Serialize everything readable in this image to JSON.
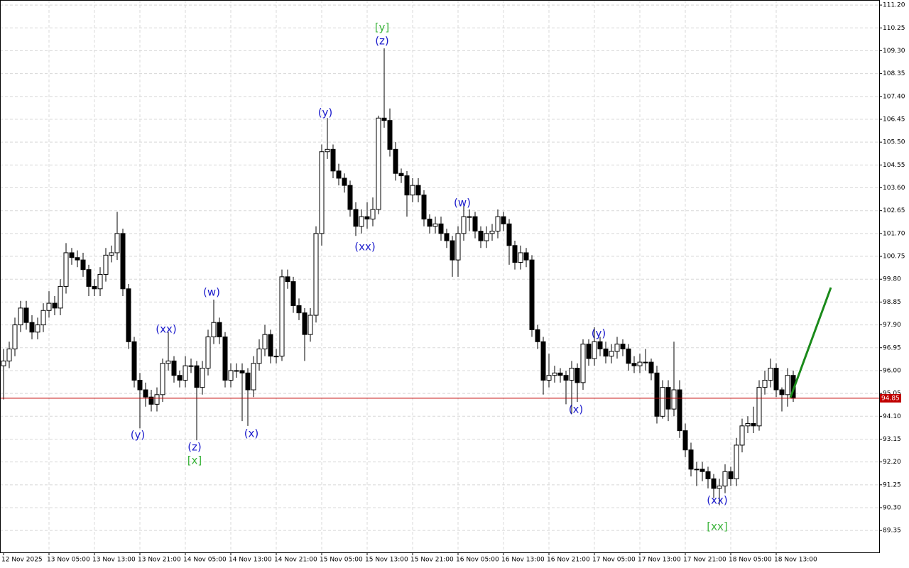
{
  "chart_data": {
    "type": "candlestick",
    "categories": [
      "12 Nov 2025",
      null,
      null,
      null,
      null,
      null,
      null,
      null,
      "13 Nov 05:00",
      null,
      null,
      null,
      null,
      null,
      null,
      null,
      "13 Nov 13:00",
      null,
      null,
      null,
      null,
      null,
      null,
      null,
      "13 Nov 21:00",
      null,
      null,
      null,
      null,
      null,
      null,
      null,
      "14 Nov 05:00",
      null,
      null,
      null,
      null,
      null,
      null,
      null,
      "14 Nov 13:00",
      null,
      null,
      null,
      null,
      null,
      null,
      null,
      "14 Nov 21:00",
      null,
      null,
      null,
      null,
      null,
      null,
      null,
      "15 Nov 05:00",
      null,
      null,
      null,
      null,
      null,
      null,
      null,
      "15 Nov 13:00",
      null,
      null,
      null,
      null,
      null,
      null,
      null,
      "15 Nov 21:00",
      null,
      null,
      null,
      null,
      null,
      null,
      null,
      "16 Nov 05:00",
      null,
      null,
      null,
      null,
      null,
      null,
      null,
      "16 Nov 13:00",
      null,
      null,
      null,
      null,
      null,
      null,
      null,
      "16 Nov 21:00",
      null,
      null,
      null,
      null,
      null,
      null,
      null,
      "17 Nov 05:00",
      null,
      null,
      null,
      null,
      null,
      null,
      null,
      "17 Nov 13:00",
      null,
      null,
      null,
      null,
      null,
      null,
      null,
      "17 Nov 21:00",
      null,
      null,
      null,
      null,
      null,
      null,
      null,
      "18 Nov 05:00",
      null,
      null,
      null,
      null,
      null,
      null,
      null,
      "18 Nov 13:00",
      null,
      null,
      null
    ],
    "open": [
      96.2,
      96.4,
      96.9,
      97.9,
      98.6,
      98.0,
      97.6,
      97.9,
      98.5,
      98.8,
      98.6,
      99.5,
      100.9,
      100.7,
      100.6,
      100.2,
      99.5,
      99.4,
      100.0,
      100.8,
      100.9,
      101.7,
      99.4,
      97.2,
      95.6,
      95.2,
      94.9,
      94.6,
      95.0,
      96.3,
      96.4,
      95.8,
      95.6,
      96.2,
      96.2,
      95.3,
      96.1,
      97.4,
      98.0,
      97.4,
      95.6,
      96.0,
      96.0,
      95.9,
      95.2,
      96.3,
      96.9,
      97.5,
      96.6,
      96.6,
      99.9,
      99.7,
      98.7,
      98.4,
      97.5,
      98.3,
      101.7,
      105.1,
      105.2,
      104.3,
      104.0,
      103.7,
      102.7,
      102.0,
      102.4,
      102.3,
      102.7,
      106.5,
      106.4,
      105.2,
      104.2,
      104.1,
      103.3,
      103.7,
      103.3,
      102.3,
      102.0,
      102.1,
      101.7,
      101.4,
      100.6,
      101.7,
      102.4,
      102.4,
      101.8,
      101.4,
      101.7,
      101.8,
      102.4,
      102.1,
      101.2,
      100.5,
      100.9,
      100.6,
      97.7,
      97.2,
      95.6,
      95.8,
      95.9,
      95.8,
      95.6,
      96.1,
      95.5,
      97.1,
      96.5,
      97.2,
      96.9,
      96.6,
      96.8,
      97.1,
      96.9,
      96.3,
      96.2,
      96.35,
      96.35,
      95.9,
      94.1,
      95.3,
      94.4,
      95.2,
      93.5,
      92.7,
      91.9,
      91.9,
      91.8,
      91.5,
      91.1,
      91.2,
      91.8,
      91.5,
      92.9,
      93.7,
      93.8,
      93.7,
      95.3,
      95.6,
      96.1,
      95.2,
      95.0,
      95.8
    ],
    "high": [
      96.9,
      97.2,
      98.2,
      98.9,
      98.9,
      98.3,
      98.2,
      98.8,
      99.3,
      99.1,
      99.8,
      101.3,
      101.1,
      101.0,
      100.9,
      100.4,
      99.8,
      100.3,
      101.1,
      101.2,
      102.6,
      101.9,
      99.6,
      97.4,
      95.9,
      95.5,
      95.2,
      95.3,
      96.5,
      97.6,
      96.6,
      96.0,
      96.6,
      96.5,
      96.4,
      96.4,
      97.7,
      98.95,
      98.2,
      97.6,
      96.3,
      96.3,
      96.3,
      96.1,
      96.6,
      97.3,
      97.9,
      97.7,
      96.9,
      100.2,
      100.2,
      99.9,
      99.0,
      98.6,
      98.6,
      102.0,
      105.4,
      106.5,
      105.4,
      104.6,
      104.2,
      103.9,
      103.0,
      102.7,
      103.0,
      103.2,
      106.6,
      109.4,
      106.9,
      105.5,
      104.4,
      104.3,
      104.0,
      104.0,
      103.5,
      102.5,
      102.4,
      102.4,
      101.9,
      101.6,
      102.0,
      102.9,
      102.7,
      102.6,
      102.0,
      102.0,
      102.1,
      102.7,
      102.6,
      102.3,
      101.4,
      101.2,
      101.1,
      100.8,
      97.9,
      97.4,
      96.7,
      96.2,
      96.1,
      96.0,
      96.4,
      96.3,
      97.3,
      97.3,
      97.8,
      97.4,
      97.2,
      97.1,
      97.4,
      97.3,
      97.1,
      96.6,
      96.7,
      96.9,
      96.5,
      96.2,
      95.6,
      95.6,
      97.2,
      95.6,
      93.8,
      93.0,
      92.2,
      92.2,
      92.0,
      91.7,
      91.5,
      92.1,
      92.0,
      93.2,
      94.0,
      94.1,
      94.5,
      95.6,
      96.0,
      96.5,
      96.3,
      95.3,
      96.1,
      96.0
    ],
    "low": [
      94.8,
      96.1,
      96.6,
      97.6,
      97.7,
      97.3,
      97.3,
      97.6,
      98.2,
      98.3,
      98.3,
      99.2,
      100.4,
      100.3,
      99.9,
      99.1,
      99.1,
      99.1,
      99.7,
      100.5,
      100.6,
      99.1,
      96.9,
      95.3,
      93.6,
      94.5,
      94.3,
      94.3,
      94.7,
      96.0,
      95.5,
      95.3,
      95.3,
      95.9,
      93.1,
      95.0,
      95.8,
      97.1,
      97.1,
      95.3,
      95.3,
      95.7,
      93.9,
      93.7,
      94.9,
      96.0,
      96.6,
      96.3,
      96.3,
      96.4,
      99.4,
      98.4,
      98.1,
      96.4,
      97.2,
      98.0,
      101.2,
      104.8,
      104.0,
      103.7,
      103.4,
      102.4,
      101.6,
      101.7,
      101.9,
      102.0,
      102.5,
      106.1,
      104.9,
      103.9,
      103.8,
      102.4,
      103.0,
      103.0,
      102.0,
      101.7,
      101.7,
      101.4,
      101.1,
      99.9,
      99.9,
      101.4,
      101.8,
      101.5,
      101.1,
      101.1,
      101.4,
      101.5,
      101.8,
      100.4,
      100.2,
      100.2,
      100.3,
      97.4,
      96.9,
      95.0,
      95.3,
      95.5,
      95.5,
      94.6,
      94.2,
      94.7,
      95.2,
      96.2,
      96.2,
      96.6,
      96.3,
      96.3,
      96.5,
      96.6,
      96.0,
      95.9,
      95.9,
      96.0,
      95.6,
      93.8,
      94.0,
      93.9,
      94.1,
      93.2,
      92.4,
      91.6,
      91.2,
      91.4,
      91.1,
      90.7,
      90.4,
      90.9,
      91.2,
      91.2,
      92.6,
      93.4,
      93.4,
      93.5,
      95.0,
      95.3,
      94.9,
      94.3,
      94.5,
      94.7
    ],
    "close": [
      96.4,
      96.9,
      97.9,
      98.6,
      98.0,
      97.6,
      97.9,
      98.5,
      98.8,
      98.6,
      99.5,
      100.9,
      100.7,
      100.6,
      100.2,
      99.5,
      99.4,
      100.0,
      100.8,
      100.9,
      101.7,
      99.4,
      97.2,
      95.6,
      95.2,
      94.9,
      94.6,
      95.0,
      96.3,
      96.4,
      95.8,
      95.6,
      96.2,
      96.2,
      95.3,
      96.1,
      97.4,
      98.0,
      97.4,
      95.6,
      96.0,
      96.0,
      95.9,
      95.2,
      96.3,
      96.9,
      97.5,
      96.6,
      96.6,
      99.9,
      99.7,
      98.7,
      98.4,
      97.5,
      98.3,
      101.7,
      105.1,
      105.2,
      104.3,
      104.0,
      103.7,
      102.7,
      102.0,
      102.4,
      102.3,
      102.7,
      106.5,
      106.4,
      105.2,
      104.2,
      104.1,
      103.3,
      103.7,
      103.3,
      102.3,
      102.0,
      102.1,
      101.7,
      101.4,
      100.6,
      101.7,
      102.4,
      102.4,
      101.8,
      101.4,
      101.7,
      101.8,
      102.4,
      102.1,
      101.2,
      100.5,
      100.9,
      100.6,
      97.7,
      97.2,
      95.6,
      95.8,
      95.9,
      95.8,
      95.6,
      96.1,
      95.5,
      97.1,
      96.5,
      97.2,
      96.9,
      96.6,
      96.8,
      97.1,
      96.9,
      96.3,
      96.2,
      96.35,
      96.35,
      95.9,
      94.1,
      95.3,
      94.4,
      95.2,
      93.5,
      92.7,
      91.9,
      91.9,
      91.8,
      91.5,
      91.1,
      91.2,
      91.8,
      91.5,
      92.9,
      93.7,
      93.8,
      93.7,
      95.3,
      95.6,
      96.1,
      95.2,
      95.0,
      95.8,
      94.85
    ],
    "up_color": "#ffffff",
    "down_color": "#000000",
    "ylim": [
      88.44,
      111.41
    ],
    "yticks": [
      {
        "value": 111.2,
        "label": "111.20"
      },
      110.25,
      {
        "value": 109.3,
        "label": "109.30"
      },
      108.35,
      {
        "value": 107.4,
        "label": "107.40"
      },
      106.45,
      {
        "value": 105.5,
        "label": "105.50"
      },
      104.55,
      {
        "value": 103.6,
        "label": "103.60"
      },
      102.65,
      {
        "value": 101.7,
        "label": "101.70"
      },
      100.75,
      {
        "value": 99.8,
        "label": "99.80"
      },
      98.85,
      {
        "value": 97.9,
        "label": "97.90"
      },
      96.95,
      {
        "value": 96,
        "label": "96.00"
      },
      95.05,
      {
        "value": 94.1,
        "label": "94.10"
      },
      93.15,
      {
        "value": 92.2,
        "label": "92.20"
      },
      91.25,
      {
        "value": 90.3,
        "label": "90.30"
      },
      89.35
    ],
    "grid": true,
    "current_price": 94.85,
    "current_price_color": "#c00000",
    "annotations": [
      {
        "text": "(y)",
        "color": "#1c1ccc"
      },
      {
        "text": "(xx)",
        "color": "#1c1ccc"
      },
      {
        "text": "(z)",
        "color": "#1c1ccc"
      },
      {
        "text": "[x]",
        "color": "#3cb43c"
      },
      {
        "text": "(w)",
        "color": "#1c1ccc"
      },
      {
        "text": "(x)",
        "color": "#1c1ccc"
      },
      {
        "text": "(y)",
        "color": "#1c1ccc"
      },
      {
        "text": "(xx)",
        "color": "#1c1ccc"
      },
      {
        "text": "[y]",
        "color": "#3cb43c"
      },
      {
        "text": "(z)",
        "color": "#1c1ccc"
      },
      {
        "text": "(w)",
        "color": "#1c1ccc"
      },
      {
        "text": "(x)",
        "color": "#1c1ccc"
      },
      {
        "text": "(y)",
        "color": "#1c1ccc"
      },
      {
        "text": "(xx)",
        "color": "#1c1ccc"
      },
      {
        "text": "[xx]",
        "color": "#3cb43c"
      }
    ]
  }
}
